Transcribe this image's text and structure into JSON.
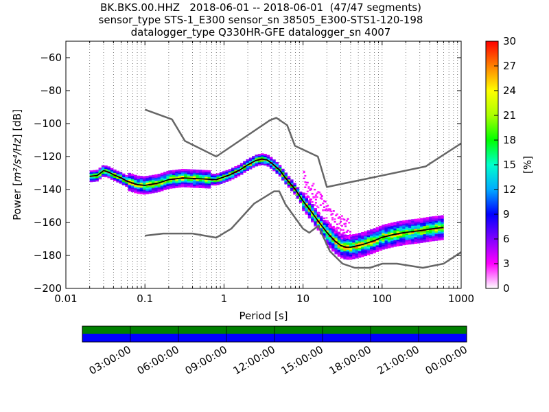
{
  "title_lines": [
    "BK.BKS.00.HHZ   2018-06-01 -- 2018-06-01  (47/47 segments)",
    "sensor_type STS-1_E300 sensor_sn 38505_E300-STS1-120-198",
    "datalogger_type Q330HR-GFE datalogger_sn 4007"
  ],
  "chart_data": {
    "type": "heatmap",
    "xlabel": "Period [s]",
    "ylabel_prefix": "Power [",
    "ylabel_units": "m²/s⁴/Hz",
    "ylabel_suffix": "] [dB]",
    "x_scale": "log",
    "xlim": [
      0.01,
      1000
    ],
    "ylim": [
      -200,
      -50
    ],
    "x_ticks": [
      0.01,
      0.1,
      1,
      10,
      100,
      1000
    ],
    "x_tick_labels": [
      "0.01",
      "0.1",
      "1",
      "10",
      "100",
      "1000"
    ],
    "y_ticks": [
      -200,
      -180,
      -160,
      -140,
      -120,
      -100,
      -80,
      -60
    ],
    "y_tick_labels": [
      "−200",
      "−180",
      "−160",
      "−140",
      "−120",
      "−100",
      "−80",
      "−60"
    ],
    "grid": "dotted vertical",
    "colorbar": {
      "label": "[%]",
      "ticks": [
        0,
        3,
        6,
        9,
        12,
        15,
        18,
        21,
        24,
        27,
        30
      ],
      "tick_labels": [
        "0",
        "3",
        "6",
        "9",
        "12",
        "15",
        "18",
        "21",
        "24",
        "27",
        "30"
      ],
      "range": [
        0,
        30
      ],
      "colors": [
        "#ffffff",
        "#ff00ff",
        "#8000ff",
        "#0000ff",
        "#00aaff",
        "#00ffcc",
        "#00ff00",
        "#aaff00",
        "#ffff00",
        "#ff8000",
        "#ff0000"
      ]
    },
    "noise_model_color": "#666666",
    "mean_line_color": "#000000",
    "high_noise_model": {
      "period": [
        0.1,
        0.22,
        0.32,
        0.8,
        3.8,
        4.6,
        6.3,
        7.9,
        15.4,
        20,
        354.8,
        1000
      ],
      "power": [
        -91.5,
        -97.4,
        -110.5,
        -120,
        -98,
        -96.5,
        -101,
        -113.5,
        -120,
        -138.5,
        -126,
        -112
      ]
    },
    "low_noise_model": {
      "period": [
        0.1,
        0.17,
        0.4,
        0.8,
        1.24,
        2.4,
        4.3,
        5,
        6,
        10,
        12,
        15.6,
        21.9,
        31.6,
        45,
        70,
        101,
        154,
        328,
        600,
        1000
      ],
      "power": [
        -168,
        -166.7,
        -166.7,
        -169.2,
        -163.7,
        -148.6,
        -141.1,
        -141.1,
        -149,
        -163.8,
        -166.2,
        -162.1,
        -177.5,
        -185,
        -187.5,
        -187.5,
        -185,
        -185,
        -187.5,
        -185,
        -178
      ]
    },
    "mean_psd": {
      "period": [
        0.02,
        0.025,
        0.03,
        0.035,
        0.04,
        0.05,
        0.06,
        0.08,
        0.1,
        0.15,
        0.2,
        0.3,
        0.5,
        0.8,
        1.2,
        1.6,
        2,
        2.5,
        3,
        3.5,
        4,
        5,
        6,
        8,
        10,
        13,
        16,
        20,
        25,
        30,
        35,
        40,
        50,
        60,
        80,
        100,
        150,
        200,
        300,
        400,
        600
      ],
      "power": [
        -132,
        -131.5,
        -128.5,
        -129.5,
        -131,
        -133,
        -135,
        -137,
        -137.5,
        -136,
        -134,
        -133,
        -133.5,
        -134,
        -131,
        -128,
        -125,
        -122.5,
        -121.5,
        -122,
        -124,
        -128,
        -133,
        -140,
        -147,
        -154,
        -160,
        -166,
        -171,
        -174,
        -175,
        -175,
        -174,
        -173,
        -171,
        -169,
        -167,
        -166,
        -165,
        -164,
        -163
      ]
    }
  },
  "time_bar": {
    "tick_labels": [
      "03:00:00",
      "06:00:00",
      "09:00:00",
      "12:00:00",
      "15:00:00",
      "18:00:00",
      "21:00:00",
      "00:00:00"
    ],
    "upper_color": "#008000",
    "lower_color": "#0000ff"
  }
}
